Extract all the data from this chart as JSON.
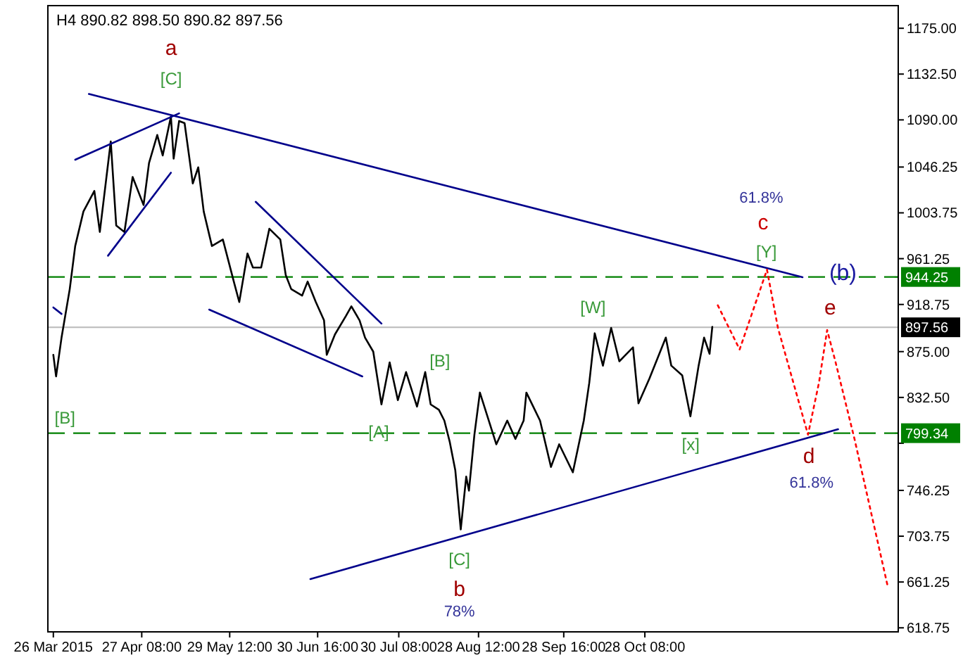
{
  "chart_data": {
    "type": "line",
    "title": "H4  890.82 898.50 890.82 897.56",
    "xlim": [
      "2015-03-24",
      "2016-01-29"
    ],
    "xticks": [
      {
        "value": "2015-03-26",
        "label": "26 Mar 2015"
      },
      {
        "value": "2015-04-27T08:00",
        "label": "27 Apr 08:00"
      },
      {
        "value": "2015-05-29T12:00",
        "label": "29 May 12:00"
      },
      {
        "value": "2015-06-30T16:00",
        "label": "30 Jun 16:00"
      },
      {
        "value": "2015-07-30T08:00",
        "label": "30 Jul 08:00"
      },
      {
        "value": "2015-08-28T12:00",
        "label": "28 Aug 12:00"
      },
      {
        "value": "2015-09-28T16:00",
        "label": "28 Sep 16:00"
      },
      {
        "value": "2015-10-28T08:00",
        "label": "28 Oct 08:00"
      }
    ],
    "ylim": [
      615,
      1196
    ],
    "yticks": [
      {
        "value": 1175,
        "label": "1175.00"
      },
      {
        "value": 1132.5,
        "label": "1132.50"
      },
      {
        "value": 1090,
        "label": "1090.00"
      },
      {
        "value": 1046.25,
        "label": "1046.25"
      },
      {
        "value": 1003.75,
        "label": "1003.75"
      },
      {
        "value": 961.25,
        "label": "961.25"
      },
      {
        "value": 918.75,
        "label": "918.75"
      },
      {
        "value": 875,
        "label": "875.00"
      },
      {
        "value": 832.5,
        "label": "832.50"
      },
      {
        "value": 790,
        "label": null
      },
      {
        "value": 746.25,
        "label": "746.25"
      },
      {
        "value": 703.75,
        "label": "703.75"
      },
      {
        "value": 661.25,
        "label": "661.25"
      },
      {
        "value": 618.75,
        "label": "618.75"
      }
    ],
    "grid": false,
    "series": [
      {
        "type": "line",
        "color": "#000000",
        "x": [
          "2015-03-26",
          "2015-03-27",
          "2015-03-29",
          "2015-04-01",
          "2015-04-03",
          "2015-04-06",
          "2015-04-10",
          "2015-04-12",
          "2015-04-16",
          "2015-04-18",
          "2015-04-21",
          "2015-04-24",
          "2015-04-28",
          "2015-04-30",
          "2015-05-03",
          "2015-05-05",
          "2015-05-08",
          "2015-05-09",
          "2015-05-11",
          "2015-05-13",
          "2015-05-15",
          "2015-05-16",
          "2015-05-18",
          "2015-05-20",
          "2015-05-23",
          "2015-05-27",
          "2015-05-31",
          "2015-06-02",
          "2015-06-05",
          "2015-06-07",
          "2015-06-10",
          "2015-06-13",
          "2015-06-17",
          "2015-06-19",
          "2015-06-21",
          "2015-06-25",
          "2015-06-27",
          "2015-06-30",
          "2015-07-03",
          "2015-07-04",
          "2015-07-07",
          "2015-07-11",
          "2015-07-13",
          "2015-07-16",
          "2015-07-18",
          "2015-07-21",
          "2015-07-24",
          "2015-07-27",
          "2015-07-30",
          "2015-08-02",
          "2015-08-06",
          "2015-08-09",
          "2015-08-11",
          "2015-08-14",
          "2015-08-16",
          "2015-08-18",
          "2015-08-20",
          "2015-08-22",
          "2015-08-24",
          "2015-08-25",
          "2015-08-27",
          "2015-08-29",
          "2015-09-04",
          "2015-09-08",
          "2015-09-11",
          "2015-09-14",
          "2015-09-15",
          "2015-09-20",
          "2015-09-24",
          "2015-09-27",
          "2015-10-02",
          "2015-10-06",
          "2015-10-08",
          "2015-10-10",
          "2015-10-13",
          "2015-10-16",
          "2015-10-19",
          "2015-10-24",
          "2015-10-26",
          "2015-10-30",
          "2015-11-05",
          "2015-11-07",
          "2015-11-11",
          "2015-11-14",
          "2015-11-17",
          "2015-11-19",
          "2015-11-21",
          "2015-11-22"
        ],
        "values": [
          872,
          852,
          888,
          933,
          973,
          1005,
          1024,
          986,
          1070,
          992,
          986,
          1037,
          1011,
          1050,
          1076,
          1057,
          1093,
          1054,
          1089,
          1087,
          1050,
          1031,
          1046,
          1005,
          973,
          979,
          940,
          921,
          966,
          953,
          953,
          989,
          979,
          946,
          933,
          927,
          940,
          921,
          904,
          872,
          891,
          908,
          917,
          904,
          888,
          875,
          826,
          865,
          830,
          856,
          824,
          856,
          826,
          821,
          811,
          791,
          765,
          710,
          759,
          746,
          798,
          837,
          789,
          811,
          794,
          811,
          837,
          811,
          768,
          789,
          763,
          811,
          846,
          892,
          862,
          897,
          866,
          879,
          827,
          850,
          888,
          862,
          853,
          815,
          862,
          888,
          873,
          898
        ]
      },
      {
        "type": "line",
        "color": "#00008b",
        "x": [
          "2015-04-08",
          "2015-12-25"
        ],
        "values": [
          1114,
          944
        ]
      },
      {
        "type": "line",
        "color": "#00008b",
        "x": [
          "2015-04-03",
          "2015-05-11"
        ],
        "values": [
          1053,
          1096
        ]
      },
      {
        "type": "line",
        "color": "#00008b",
        "x": [
          "2015-04-15",
          "2015-05-08"
        ],
        "values": [
          964,
          1041
        ]
      },
      {
        "type": "line",
        "color": "#00008b",
        "x": [
          "2015-06-08",
          "2015-07-24"
        ],
        "values": [
          1014,
          901
        ]
      },
      {
        "type": "line",
        "color": "#00008b",
        "x": [
          "2015-05-22",
          "2015-07-17"
        ],
        "values": [
          914,
          852
        ]
      },
      {
        "type": "line",
        "color": "#00008b",
        "x": [
          "2015-03-26",
          "2015-03-29"
        ],
        "values": [
          916,
          910
        ]
      },
      {
        "type": "line",
        "color": "#00008b",
        "x": [
          "2015-06-28",
          "2016-01-07"
        ],
        "values": [
          664,
          803
        ]
      },
      {
        "type": "line",
        "color": "#ff0000",
        "line_style": "dotted",
        "x": [
          "2015-11-24",
          "2015-12-02",
          "2015-12-12",
          "2015-12-16",
          "2015-12-27",
          "2015-12-31",
          "2016-01-03",
          "2016-01-06",
          "2016-01-13",
          "2016-01-25"
        ],
        "values": [
          918,
          877,
          951,
          897,
          798,
          846,
          895,
          866,
          794,
          659
        ]
      }
    ],
    "ref_lines": [
      {
        "axis": "y",
        "value": 944.25,
        "label": "944.25",
        "color": "#008000",
        "line_style": "dashed"
      },
      {
        "axis": "y",
        "value": 799.34,
        "label": "799.34",
        "color": "#008000",
        "line_style": "dashed"
      },
      {
        "axis": "y",
        "value": 897.56,
        "label": "897.56",
        "color": "#c0c0c0",
        "line_style": "solid"
      }
    ],
    "annotations": [
      "a",
      "[C]",
      "[B]",
      "[B]",
      "[A]",
      "[C]",
      "b",
      "78%",
      "[W]",
      "[x]",
      "61.8%",
      "c",
      "[Y]",
      "(b)",
      "e",
      "d",
      "61.8%"
    ]
  }
}
